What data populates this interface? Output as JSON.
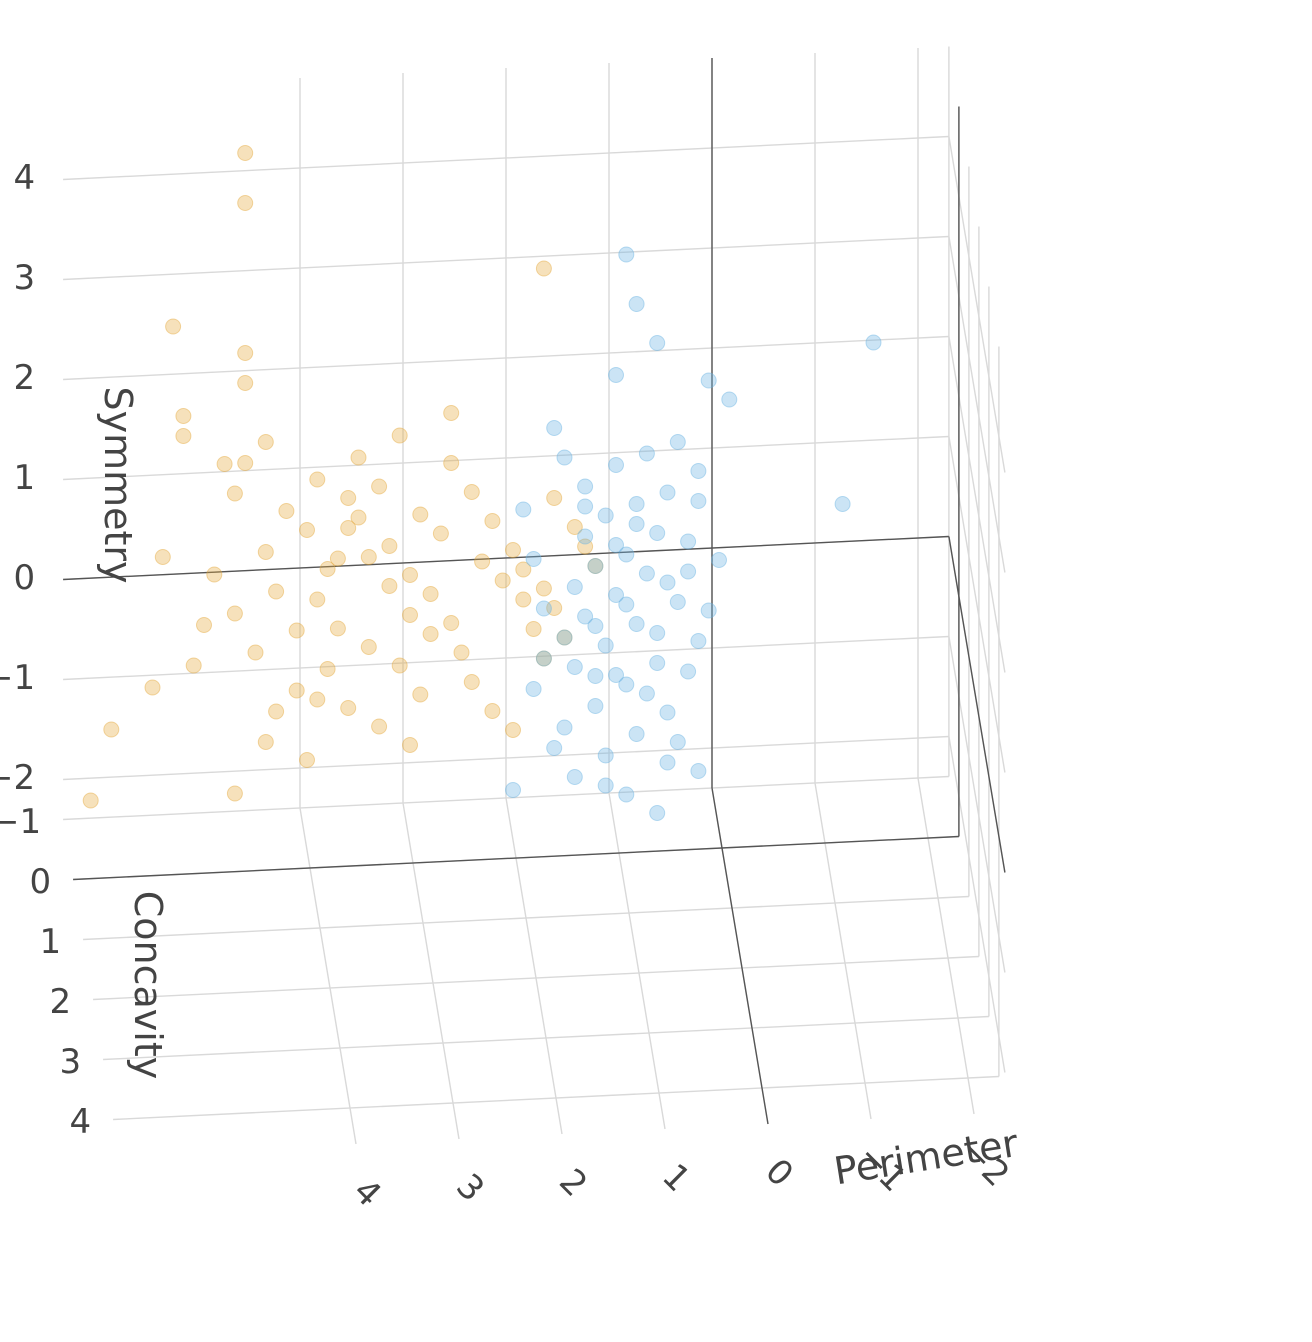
{
  "chart_data": {
    "type": "scatter3d",
    "axes": {
      "x": {
        "label": "Perimeter",
        "ticks": [
          4,
          3,
          2,
          1,
          0,
          -1,
          -2
        ],
        "tick_labels": [
          "4",
          "3",
          "2",
          "1",
          "0",
          "−1",
          "−2"
        ]
      },
      "y": {
        "label": "Concavity",
        "ticks": [
          -1,
          0,
          1,
          2,
          3,
          4
        ],
        "tick_labels": [
          "−1",
          "0",
          "1",
          "2",
          "3",
          "4"
        ]
      },
      "z": {
        "label": "Symmetry",
        "ticks": [
          -2,
          -1,
          0,
          1,
          2,
          3,
          4
        ],
        "tick_labels": [
          "−2",
          "−1",
          "0",
          "1",
          "2",
          "3",
          "4"
        ]
      }
    },
    "grid": true,
    "series": [
      {
        "color": "#E5A93C",
        "opacity": 0.35,
        "points": [
          [
            4.6,
            -0.3,
            4.6
          ],
          [
            4.6,
            -0.3,
            4.1
          ],
          [
            1.7,
            -0.3,
            3.3
          ],
          [
            5.3,
            -0.3,
            2.9
          ],
          [
            4.6,
            -0.3,
            2.6
          ],
          [
            4.6,
            -0.3,
            2.3
          ],
          [
            5.2,
            -0.3,
            2.0
          ],
          [
            5.2,
            -0.3,
            1.8
          ],
          [
            2.6,
            -0.3,
            1.9
          ],
          [
            4.4,
            -0.3,
            1.7
          ],
          [
            4.6,
            -0.3,
            1.5
          ],
          [
            4.7,
            -0.3,
            1.2
          ],
          [
            4.0,
            -0.3,
            0.8
          ],
          [
            4.4,
            -0.3,
            0.6
          ],
          [
            3.8,
            -0.3,
            0.4
          ],
          [
            4.3,
            -0.3,
            0.2
          ],
          [
            5.0,
            -0.3,
            -0.1
          ],
          [
            4.5,
            -0.3,
            -0.4
          ],
          [
            4.1,
            -0.3,
            -0.8
          ],
          [
            4.3,
            -0.3,
            -1.0
          ],
          [
            5.9,
            -0.3,
            -1.1
          ],
          [
            6.1,
            -0.3,
            -1.8
          ],
          [
            5.5,
            -0.3,
            -0.7
          ],
          [
            4.0,
            -0.3,
            -1.5
          ],
          [
            4.7,
            -0.3,
            -1.8
          ],
          [
            4.8,
            -0.3,
            1.5
          ],
          [
            3.9,
            -0.3,
            1.3
          ],
          [
            3.6,
            -0.3,
            1.1
          ],
          [
            3.5,
            -0.3,
            0.9
          ],
          [
            3.2,
            -0.3,
            0.6
          ],
          [
            3.0,
            -0.3,
            0.3
          ],
          [
            2.8,
            -0.3,
            0.1
          ],
          [
            2.6,
            -0.3,
            -0.2
          ],
          [
            2.5,
            -0.3,
            -0.5
          ],
          [
            2.4,
            -0.3,
            -0.8
          ],
          [
            2.2,
            -0.3,
            -1.1
          ],
          [
            2.0,
            -0.3,
            -1.3
          ],
          [
            3.5,
            -0.3,
            1.5
          ],
          [
            3.3,
            -0.3,
            1.2
          ],
          [
            2.9,
            -0.3,
            0.9
          ],
          [
            2.7,
            -0.3,
            0.7
          ],
          [
            2.3,
            -0.3,
            0.4
          ],
          [
            2.1,
            -0.3,
            0.2
          ],
          [
            1.9,
            -0.3,
            0.0
          ],
          [
            1.8,
            -0.3,
            -0.3
          ],
          [
            1.7,
            -0.3,
            -0.6
          ],
          [
            3.9,
            -0.3,
            0.1
          ],
          [
            3.7,
            -0.3,
            -0.2
          ],
          [
            3.4,
            -0.3,
            -0.4
          ],
          [
            3.1,
            -0.3,
            -0.6
          ],
          [
            2.9,
            -0.3,
            -0.9
          ],
          [
            3.6,
            -0.3,
            0.8
          ],
          [
            3.4,
            -0.3,
            0.5
          ],
          [
            3.2,
            -0.3,
            0.2
          ],
          [
            3.0,
            -0.3,
            -0.1
          ],
          [
            2.8,
            -0.3,
            -0.3
          ],
          [
            3.8,
            -0.3,
            -0.6
          ],
          [
            3.6,
            -0.3,
            -1.0
          ],
          [
            3.3,
            -0.3,
            -1.2
          ],
          [
            3.0,
            -0.3,
            -1.4
          ],
          [
            4.2,
            -0.3,
            1.0
          ],
          [
            2.4,
            -0.3,
            1.1
          ],
          [
            2.2,
            -0.3,
            0.8
          ],
          [
            2.0,
            -0.3,
            0.5
          ],
          [
            1.9,
            -0.3,
            0.3
          ],
          [
            1.7,
            -0.3,
            0.1
          ],
          [
            1.6,
            -0.3,
            -0.1
          ],
          [
            1.5,
            -0.3,
            -0.4
          ],
          [
            1.6,
            -0.3,
            1.0
          ],
          [
            1.4,
            -0.3,
            0.7
          ],
          [
            1.3,
            -0.3,
            0.5
          ],
          [
            1.2,
            -0.3,
            0.3
          ],
          [
            4.9,
            -0.3,
            0.4
          ],
          [
            4.7,
            -0.3,
            0.0
          ],
          [
            5.1,
            -0.3,
            -0.5
          ],
          [
            5.4,
            -0.3,
            0.6
          ],
          [
            4.1,
            -0.3,
            -0.2
          ],
          [
            3.9,
            -0.3,
            -0.9
          ],
          [
            4.4,
            -0.3,
            -1.3
          ],
          [
            3.7,
            -0.3,
            0.5
          ],
          [
            2.6,
            -0.3,
            1.4
          ],
          [
            3.1,
            -0.3,
            1.7
          ]
        ]
      },
      {
        "color": "#6BB3E3",
        "opacity": 0.35,
        "points": [
          [
            0.9,
            -0.3,
            3.4
          ],
          [
            0.8,
            -0.3,
            2.9
          ],
          [
            1.0,
            -0.3,
            2.2
          ],
          [
            1.6,
            -0.3,
            1.7
          ],
          [
            -0.1,
            -0.3,
            1.9
          ],
          [
            -1.5,
            -0.3,
            2.4
          ],
          [
            -1.2,
            -0.3,
            0.8
          ],
          [
            0.2,
            -0.3,
            1.2
          ],
          [
            0.5,
            -0.3,
            1.0
          ],
          [
            0.8,
            -0.3,
            0.9
          ],
          [
            1.1,
            -0.3,
            0.8
          ],
          [
            1.3,
            -0.3,
            0.6
          ],
          [
            0.6,
            -0.3,
            0.6
          ],
          [
            0.9,
            -0.3,
            0.4
          ],
          [
            1.2,
            -0.3,
            0.3
          ],
          [
            1.4,
            -0.3,
            0.1
          ],
          [
            0.3,
            -0.3,
            0.5
          ],
          [
            0.7,
            -0.3,
            0.2
          ],
          [
            1.0,
            -0.3,
            0.0
          ],
          [
            1.3,
            -0.3,
            -0.2
          ],
          [
            1.5,
            -0.3,
            -0.4
          ],
          [
            0.4,
            -0.3,
            -0.1
          ],
          [
            0.8,
            -0.3,
            -0.3
          ],
          [
            1.1,
            -0.3,
            -0.5
          ],
          [
            1.4,
            -0.3,
            -0.7
          ],
          [
            0.2,
            -0.3,
            -0.5
          ],
          [
            0.6,
            -0.3,
            -0.7
          ],
          [
            0.9,
            -0.3,
            -0.9
          ],
          [
            1.2,
            -0.3,
            -1.1
          ],
          [
            1.5,
            -0.3,
            -1.3
          ],
          [
            0.5,
            -0.3,
            -1.2
          ],
          [
            0.8,
            -0.3,
            -1.4
          ],
          [
            1.1,
            -0.3,
            -1.6
          ],
          [
            0.9,
            -0.3,
            -2.0
          ],
          [
            0.6,
            -0.3,
            -2.2
          ],
          [
            2.0,
            -0.3,
            -1.9
          ],
          [
            0.0,
            -0.3,
            0.3
          ],
          [
            0.1,
            -0.3,
            -0.2
          ],
          [
            0.3,
            -0.3,
            -0.8
          ],
          [
            1.7,
            -0.3,
            -0.1
          ],
          [
            1.8,
            -0.3,
            -0.9
          ],
          [
            1.6,
            -0.3,
            -1.5
          ],
          [
            0.4,
            -0.3,
            1.5
          ],
          [
            0.7,
            -0.3,
            1.4
          ],
          [
            1.0,
            -0.3,
            1.3
          ],
          [
            1.3,
            -0.3,
            1.1
          ],
          [
            1.5,
            -0.3,
            1.4
          ],
          [
            0.2,
            -0.3,
            0.9
          ],
          [
            0.5,
            -0.3,
            0.1
          ],
          [
            0.9,
            -0.3,
            -0.1
          ],
          [
            1.2,
            -0.3,
            -0.3
          ],
          [
            1.0,
            -0.3,
            -0.8
          ],
          [
            0.7,
            -0.3,
            -1.0
          ],
          [
            0.4,
            -0.3,
            -1.5
          ],
          [
            0.2,
            -0.3,
            -1.8
          ],
          [
            1.4,
            -0.3,
            -1.8
          ],
          [
            1.7,
            -0.3,
            -0.6
          ],
          [
            1.8,
            -0.3,
            0.4
          ],
          [
            1.9,
            -0.3,
            0.9
          ],
          [
            0.6,
            -0.3,
            2.5
          ],
          [
            0.1,
            -0.3,
            2.1
          ],
          [
            1.1,
            -0.3,
            -1.9
          ],
          [
            1.3,
            -0.3,
            0.9
          ],
          [
            0.8,
            -0.3,
            0.7
          ],
          [
            0.3,
            -0.3,
            0.2
          ],
          [
            0.6,
            -0.3,
            -0.4
          ],
          [
            1.0,
            -0.3,
            0.5
          ],
          [
            1.2,
            -0.3,
            -0.8
          ],
          [
            0.5,
            -0.3,
            -1.7
          ]
        ]
      }
    ]
  }
}
